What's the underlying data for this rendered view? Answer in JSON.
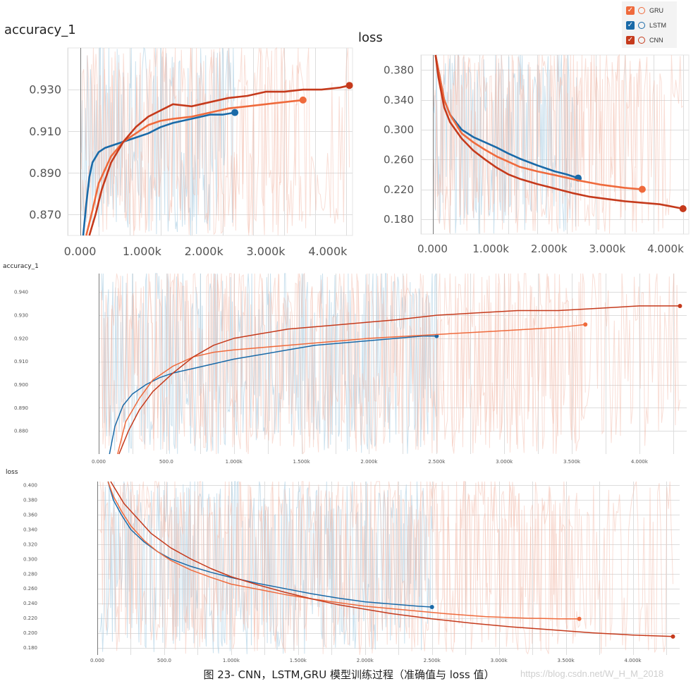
{
  "legend": {
    "items": [
      {
        "label": "GRU",
        "color": "#ef6a3c"
      },
      {
        "label": "LSTM",
        "color": "#1a6aa8"
      },
      {
        "label": "CNN",
        "color": "#c53a1c"
      }
    ]
  },
  "caption": "图 23- CNN，LSTM,GRU 模型训练过程（准确值与 loss 值）",
  "watermark": "https://blog.csdn.net/W_H_M_2018",
  "colors": {
    "gru": "#ef6a3c",
    "lstm": "#1a6aa8",
    "cnn": "#c53a1c",
    "raw": "#f2b5a3",
    "raw_lstm": "#a9cde3",
    "grid": "#dddddd"
  },
  "chart_data": [
    {
      "type": "line",
      "title": "accuracy_1",
      "xlim": [
        -0.2,
        4.4
      ],
      "ylim": [
        0.86,
        0.95
      ],
      "x_ticks": [
        0,
        1,
        2,
        3,
        4
      ],
      "x_tick_labels": [
        "0.000",
        "1.000k",
        "2.000k",
        "3.000k",
        "4.000k"
      ],
      "y_ticks": [
        0.87,
        0.89,
        0.91,
        0.93
      ],
      "y_tick_labels": [
        "0.870",
        "0.890",
        "0.910",
        "0.930"
      ],
      "series": [
        {
          "name": "LSTM",
          "color": "#1a6aa8",
          "x": [
            0.05,
            0.1,
            0.15,
            0.2,
            0.3,
            0.4,
            0.5,
            0.7,
            0.9,
            1.1,
            1.3,
            1.5,
            1.8,
            2.1,
            2.3,
            2.5
          ],
          "y": [
            0.855,
            0.875,
            0.888,
            0.895,
            0.9,
            0.902,
            0.903,
            0.905,
            0.907,
            0.909,
            0.912,
            0.914,
            0.916,
            0.918,
            0.918,
            0.919
          ]
        },
        {
          "name": "GRU",
          "color": "#ef6a3c",
          "x": [
            0.1,
            0.2,
            0.3,
            0.5,
            0.7,
            0.9,
            1.1,
            1.3,
            1.5,
            1.8,
            2.1,
            2.4,
            2.7,
            3.0,
            3.3,
            3.6
          ],
          "y": [
            0.855,
            0.872,
            0.885,
            0.898,
            0.905,
            0.909,
            0.913,
            0.915,
            0.916,
            0.917,
            0.919,
            0.921,
            0.922,
            0.923,
            0.924,
            0.925
          ]
        },
        {
          "name": "CNN",
          "color": "#c53a1c",
          "x": [
            0.15,
            0.25,
            0.35,
            0.5,
            0.7,
            0.9,
            1.1,
            1.3,
            1.5,
            1.8,
            2.1,
            2.4,
            2.7,
            3.0,
            3.3,
            3.6,
            3.9,
            4.2,
            4.35
          ],
          "y": [
            0.855,
            0.87,
            0.882,
            0.895,
            0.905,
            0.912,
            0.917,
            0.92,
            0.923,
            0.922,
            0.924,
            0.926,
            0.927,
            0.929,
            0.929,
            0.93,
            0.93,
            0.931,
            0.932
          ]
        }
      ]
    },
    {
      "type": "line",
      "title": "loss",
      "xlim": [
        -0.2,
        4.4
      ],
      "ylim": [
        0.16,
        0.4
      ],
      "x_ticks": [
        0,
        1,
        2,
        3,
        4
      ],
      "x_tick_labels": [
        "0.000",
        "1.000k",
        "2.000k",
        "3.000k",
        "4.000k"
      ],
      "y_ticks": [
        0.18,
        0.22,
        0.26,
        0.3,
        0.34,
        0.38
      ],
      "y_tick_labels": [
        "0.180",
        "0.220",
        "0.260",
        "0.300",
        "0.340",
        "0.380"
      ],
      "series": [
        {
          "name": "LSTM",
          "color": "#1a6aa8",
          "x": [
            0.05,
            0.1,
            0.2,
            0.3,
            0.5,
            0.7,
            0.9,
            1.1,
            1.3,
            1.5,
            1.8,
            2.1,
            2.3,
            2.5
          ],
          "y": [
            0.41,
            0.38,
            0.34,
            0.32,
            0.3,
            0.29,
            0.283,
            0.276,
            0.268,
            0.261,
            0.252,
            0.244,
            0.24,
            0.235
          ]
        },
        {
          "name": "GRU",
          "color": "#ef6a3c",
          "x": [
            0.05,
            0.1,
            0.2,
            0.3,
            0.5,
            0.7,
            0.9,
            1.1,
            1.3,
            1.5,
            1.8,
            2.1,
            2.5,
            2.9,
            3.3,
            3.6
          ],
          "y": [
            0.41,
            0.38,
            0.34,
            0.32,
            0.295,
            0.283,
            0.273,
            0.264,
            0.257,
            0.25,
            0.244,
            0.239,
            0.232,
            0.226,
            0.222,
            0.22
          ]
        },
        {
          "name": "CNN",
          "color": "#c53a1c",
          "x": [
            0.05,
            0.1,
            0.2,
            0.3,
            0.5,
            0.7,
            0.9,
            1.1,
            1.3,
            1.5,
            1.8,
            2.1,
            2.4,
            2.7,
            3.0,
            3.3,
            3.6,
            3.9,
            4.1,
            4.3
          ],
          "y": [
            0.41,
            0.37,
            0.33,
            0.31,
            0.288,
            0.272,
            0.26,
            0.249,
            0.24,
            0.234,
            0.227,
            0.221,
            0.215,
            0.21,
            0.207,
            0.204,
            0.202,
            0.2,
            0.197,
            0.194
          ]
        }
      ]
    },
    {
      "type": "line",
      "title": "accuracy_1",
      "xlim": [
        0,
        4.35
      ],
      "ylim": [
        0.87,
        0.948
      ],
      "x_ticks": [
        0,
        0.5,
        1,
        1.5,
        2,
        2.5,
        3,
        3.5,
        4
      ],
      "x_tick_labels": [
        "0.000",
        "500.0",
        "1.000k",
        "1.500k",
        "2.000k",
        "2.500k",
        "3.000k",
        "3.500k",
        "4.000k"
      ],
      "y_ticks": [
        0.88,
        0.89,
        0.9,
        0.91,
        0.92,
        0.93,
        0.94
      ],
      "y_tick_labels": [
        "0.880",
        "0.890",
        "0.900",
        "0.910",
        "0.920",
        "0.930",
        "0.940"
      ],
      "series": [
        {
          "name": "LSTM",
          "color": "#1a6aa8",
          "x": [
            0.08,
            0.12,
            0.18,
            0.25,
            0.35,
            0.45,
            0.55,
            0.7,
            0.85,
            1.0,
            1.2,
            1.4,
            1.6,
            1.8,
            2.0,
            2.2,
            2.4,
            2.5
          ],
          "y": [
            0.87,
            0.882,
            0.891,
            0.896,
            0.9,
            0.903,
            0.905,
            0.907,
            0.909,
            0.911,
            0.913,
            0.915,
            0.917,
            0.918,
            0.919,
            0.92,
            0.921,
            0.921
          ]
        },
        {
          "name": "GRU",
          "color": "#ef6a3c",
          "x": [
            0.14,
            0.2,
            0.3,
            0.4,
            0.55,
            0.7,
            0.85,
            1.0,
            1.2,
            1.4,
            1.6,
            1.8,
            2.0,
            2.3,
            2.6,
            2.9,
            3.2,
            3.45,
            3.6
          ],
          "y": [
            0.87,
            0.884,
            0.894,
            0.902,
            0.908,
            0.912,
            0.914,
            0.915,
            0.916,
            0.917,
            0.918,
            0.919,
            0.92,
            0.921,
            0.922,
            0.923,
            0.924,
            0.925,
            0.926
          ]
        },
        {
          "name": "CNN",
          "color": "#c53a1c",
          "x": [
            0.15,
            0.22,
            0.3,
            0.4,
            0.55,
            0.7,
            0.85,
            1.0,
            1.2,
            1.4,
            1.6,
            1.8,
            2.0,
            2.2,
            2.5,
            2.8,
            3.1,
            3.4,
            3.7,
            4.0,
            4.3
          ],
          "y": [
            0.87,
            0.88,
            0.889,
            0.897,
            0.905,
            0.912,
            0.917,
            0.92,
            0.922,
            0.924,
            0.925,
            0.926,
            0.927,
            0.928,
            0.93,
            0.931,
            0.932,
            0.932,
            0.933,
            0.934,
            0.934
          ]
        }
      ]
    },
    {
      "type": "line",
      "title": "loss",
      "xlim": [
        0,
        4.35
      ],
      "ylim": [
        0.17,
        0.405
      ],
      "x_ticks": [
        0,
        0.5,
        1,
        1.5,
        2,
        2.5,
        3,
        3.5,
        4
      ],
      "x_tick_labels": [
        "0.000",
        "500.0",
        "1.000k",
        "1.500k",
        "2.000k",
        "2.500k",
        "3.000k",
        "3.500k",
        "4.000k"
      ],
      "y_ticks": [
        0.18,
        0.2,
        0.22,
        0.24,
        0.26,
        0.28,
        0.3,
        0.32,
        0.34,
        0.36,
        0.38,
        0.4
      ],
      "y_tick_labels": [
        "0.180",
        "0.200",
        "0.220",
        "0.240",
        "0.260",
        "0.280",
        "0.300",
        "0.320",
        "0.340",
        "0.360",
        "0.380",
        "0.400"
      ],
      "series": [
        {
          "name": "LSTM",
          "color": "#1a6aa8",
          "x": [
            0.08,
            0.12,
            0.18,
            0.25,
            0.35,
            0.45,
            0.55,
            0.7,
            0.85,
            1.0,
            1.2,
            1.4,
            1.6,
            1.8,
            2.0,
            2.2,
            2.4,
            2.5
          ],
          "y": [
            0.405,
            0.38,
            0.36,
            0.34,
            0.323,
            0.31,
            0.3,
            0.29,
            0.282,
            0.275,
            0.267,
            0.26,
            0.253,
            0.247,
            0.242,
            0.239,
            0.236,
            0.235
          ]
        },
        {
          "name": "GRU",
          "color": "#ef6a3c",
          "x": [
            0.08,
            0.12,
            0.18,
            0.25,
            0.35,
            0.45,
            0.55,
            0.7,
            0.85,
            1.0,
            1.2,
            1.4,
            1.6,
            1.8,
            2.0,
            2.3,
            2.6,
            2.9,
            3.2,
            3.45,
            3.6
          ],
          "y": [
            0.405,
            0.385,
            0.365,
            0.345,
            0.325,
            0.31,
            0.298,
            0.285,
            0.275,
            0.266,
            0.259,
            0.252,
            0.246,
            0.241,
            0.236,
            0.231,
            0.226,
            0.222,
            0.22,
            0.219,
            0.219
          ]
        },
        {
          "name": "CNN",
          "color": "#c53a1c",
          "x": [
            0.1,
            0.15,
            0.2,
            0.3,
            0.4,
            0.55,
            0.7,
            0.85,
            1.0,
            1.2,
            1.4,
            1.6,
            1.8,
            2.0,
            2.2,
            2.5,
            2.8,
            3.1,
            3.4,
            3.7,
            4.0,
            4.3
          ],
          "y": [
            0.405,
            0.39,
            0.375,
            0.355,
            0.335,
            0.315,
            0.3,
            0.287,
            0.276,
            0.265,
            0.255,
            0.246,
            0.238,
            0.232,
            0.226,
            0.219,
            0.213,
            0.208,
            0.204,
            0.2,
            0.197,
            0.195
          ]
        }
      ]
    }
  ]
}
